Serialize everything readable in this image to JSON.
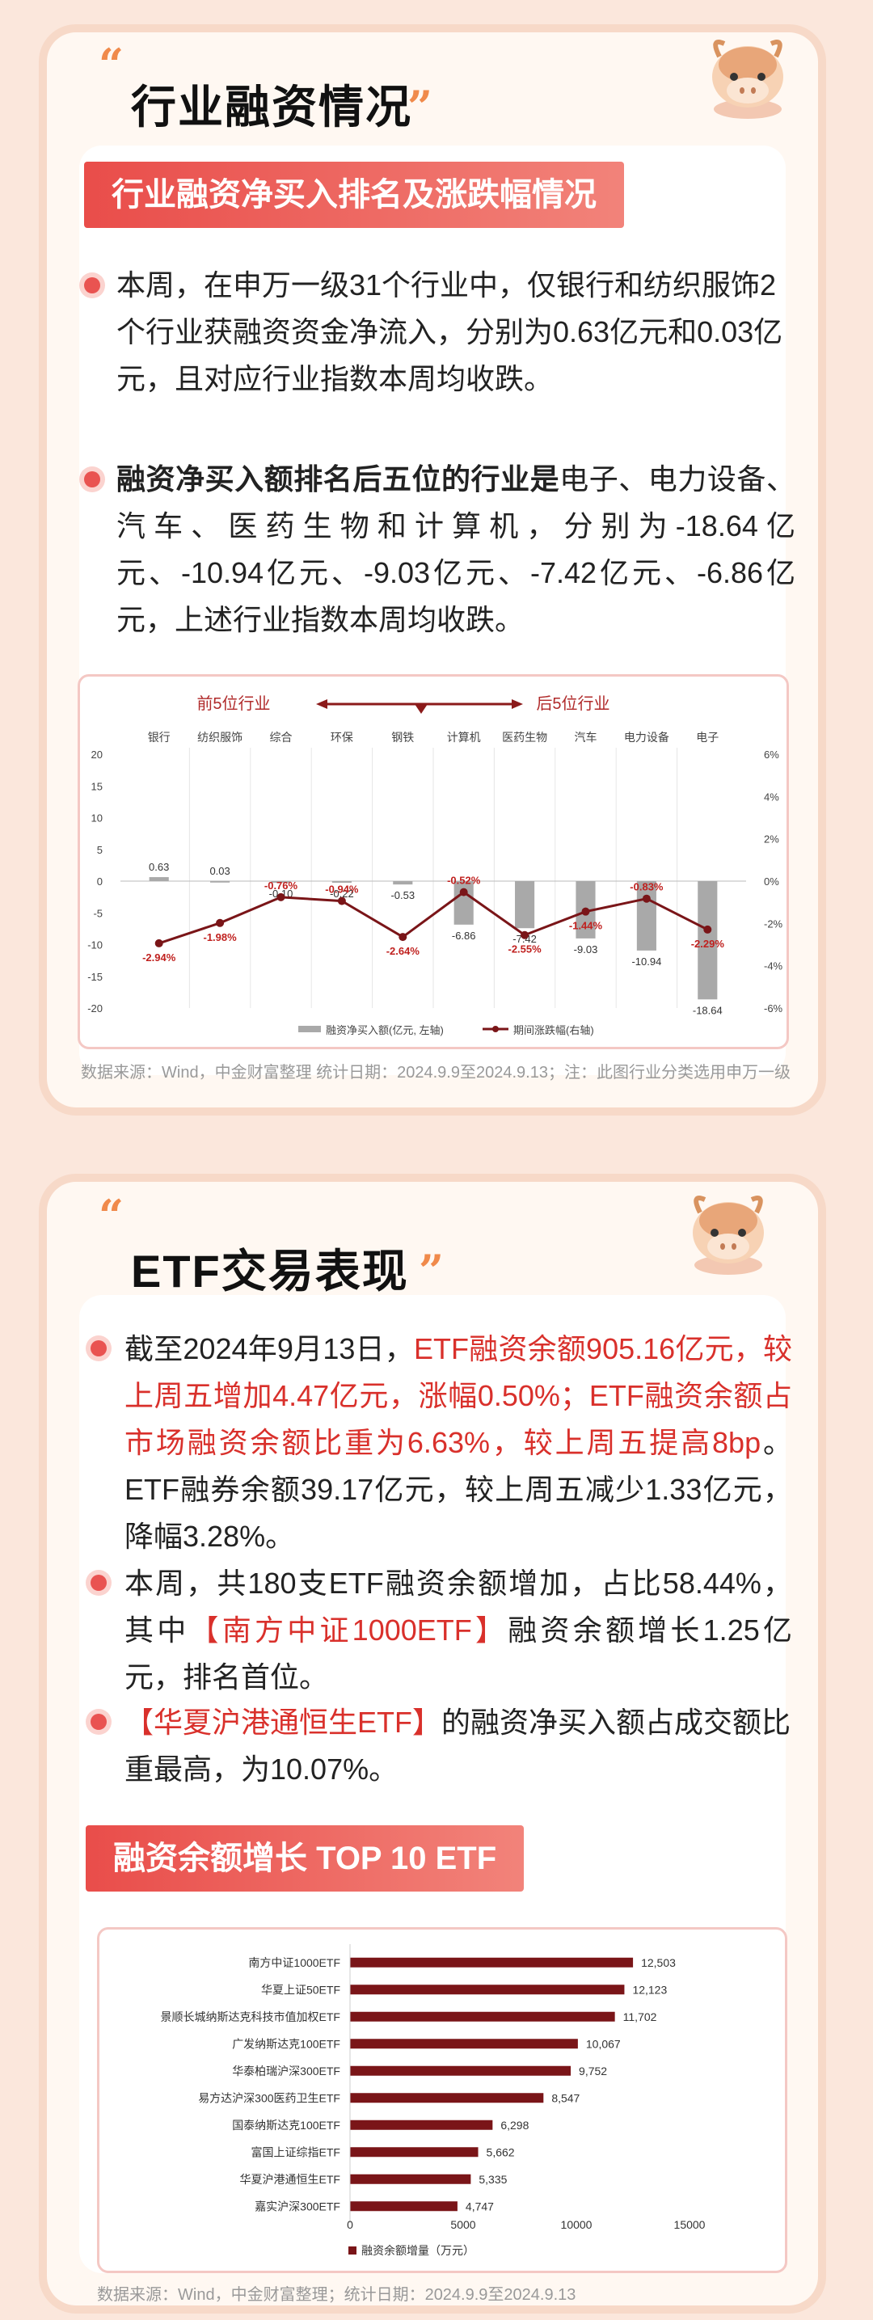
{
  "section1": {
    "title": "行业融资情况",
    "banner": "行业融资净买入排名及涨跌幅情况",
    "p1": "本周，在申万一级31个行业中，仅银行和纺织服饰2个行业获融资资金净流入，分别为0.63亿元和0.03亿元，且对应行业指数本周均收跌。",
    "p2_bold": "融资净买入额排名后五位的行业是",
    "p2_rest": "电子、电力设备、汽车、医药生物和计算机，分别为-18.64亿元、-10.94亿元、-9.03亿元、-7.42亿元、-6.86亿元，上述行业指数本周均收跌。",
    "source": "数据来源：Wind，中金财富整理 统计日期：2024.9.9至2024.9.13；注：此图行业分类选用申万一级"
  },
  "chart1": {
    "arrow_left": "前5位行业",
    "arrow_right": "后5位行业",
    "legend_bar": "融资净买入额(亿元, 左轴)",
    "legend_line": "期间涨跌幅(右轴)",
    "left_ticks": [
      "20",
      "15",
      "10",
      "5",
      "0",
      "-5",
      "-10",
      "-15",
      "-20"
    ],
    "right_ticks": [
      "6%",
      "4%",
      "2%",
      "0%",
      "-2%",
      "-4%",
      "-6%"
    ]
  },
  "chart_data": [
    {
      "type": "bar",
      "categories": [
        "银行",
        "纺织服饰",
        "综合",
        "环保",
        "钢铁",
        "计算机",
        "医药生物",
        "汽车",
        "电力设备",
        "电子"
      ],
      "series": [
        {
          "name": "融资净买入额(亿元, 左轴)",
          "values": [
            0.63,
            0.03,
            -0.1,
            -0.22,
            -0.53,
            -6.86,
            -7.42,
            -9.03,
            -10.94,
            -18.64
          ]
        },
        {
          "name": "期间涨跌幅(右轴)",
          "values": [
            -2.94,
            -1.98,
            -0.76,
            -0.94,
            -2.64,
            -0.52,
            -2.55,
            -1.44,
            -0.83,
            -2.29
          ]
        }
      ],
      "value_labels": [
        "0.63",
        "0.03",
        "-0.10",
        "-0.22",
        "-0.53",
        "-6.86",
        "-7.42",
        "-9.03",
        "-10.94",
        "-18.64"
      ],
      "pct_labels": [
        "-2.94%",
        "-1.98%",
        "-0.76%",
        "-0.94%",
        "-2.64%",
        "-0.52%",
        "-2.55%",
        "-1.44%",
        "-0.83%",
        "-2.29%"
      ],
      "ylim_left": [
        -20,
        20
      ],
      "ylim_right": [
        -6,
        6
      ]
    },
    {
      "type": "bar",
      "categories": [
        "南方中证1000ETF",
        "华夏上证50ETF",
        "景顺长城纳斯达克科技市值加权ETF",
        "广发纳斯达克100ETF",
        "华泰柏瑞沪深300ETF",
        "易方达沪深300医药卫生ETF",
        "国泰纳斯达克100ETF",
        "富国上证综指ETF",
        "华夏沪港通恒生ETF",
        "嘉实沪深300ETF"
      ],
      "values": [
        12503,
        12123,
        11702,
        10067,
        9752,
        8547,
        6298,
        5662,
        5335,
        4747
      ],
      "value_labels": [
        "12,503",
        "12,123",
        "11,702",
        "10,067",
        "9,752",
        "8,547",
        "6,298",
        "5,662",
        "5,335",
        "4,747"
      ],
      "x_ticks": [
        "0",
        "5000",
        "10000",
        "15000"
      ],
      "xlim": [
        0,
        15000
      ],
      "legend": "融资余额增量（万元）"
    }
  ],
  "section2": {
    "title": "ETF交易表现",
    "p1_a": "截至2024年9月13日，",
    "p1_red": "ETF融资余额905.16亿元，较上周五增加4.47亿元，涨幅0.50%；ETF融资余额占市场融资余额比重为6.63%，较上周五提高8bp",
    "p1_b": "。ETF融券余额39.17亿元，较上周五减少1.33亿元，降幅3.28%。",
    "p2_a": "本周，共180支ETF融资余额增加，占比58.44%，其中",
    "p2_red": "【南方中证1000ETF】",
    "p2_b": "融资余额增长1.25亿元，排名首位。",
    "p3_red": "【华夏沪港通恒生ETF】",
    "p3_b": "的融资净买入额占成交额比重最高，为10.07%。",
    "banner": "融资余额增长 TOP 10 ETF",
    "source": "数据来源：Wind，中金财富整理；统计日期：2024.9.9至2024.9.13"
  }
}
